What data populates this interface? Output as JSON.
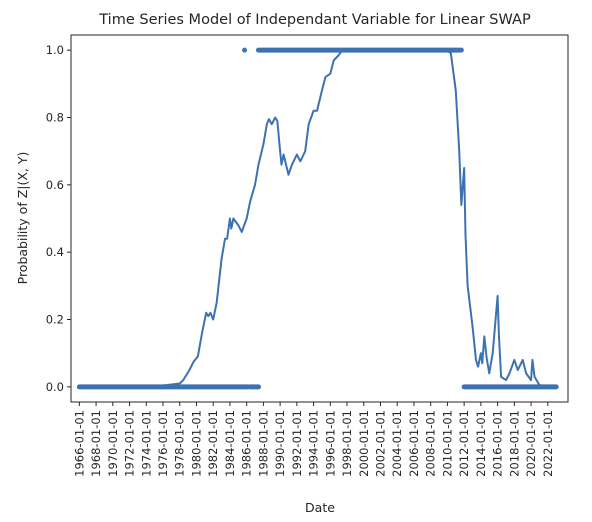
{
  "chart_data": {
    "type": "line",
    "title": "Time Series Model of Independant Variable for Linear SWAP",
    "xlabel": "Date",
    "ylabel": "Probability of Z|(X, Y)",
    "xlim": [
      "1965-01-01",
      "2024-06-01"
    ],
    "ylim": [
      -0.045,
      1.045
    ],
    "yticks": [
      0.0,
      0.2,
      0.4,
      0.6,
      0.8,
      1.0
    ],
    "ytick_labels": [
      "0.0",
      "0.2",
      "0.4",
      "0.6",
      "0.8",
      "1.0"
    ],
    "xticks": [
      "1966-01-01",
      "1968-01-01",
      "1970-01-01",
      "1972-01-01",
      "1974-01-01",
      "1976-01-01",
      "1978-01-01",
      "1980-01-01",
      "1982-01-01",
      "1984-01-01",
      "1986-01-01",
      "1988-01-01",
      "1990-01-01",
      "1992-01-01",
      "1994-01-01",
      "1996-01-01",
      "1998-01-01",
      "2000-01-01",
      "2002-01-01",
      "2004-01-01",
      "2006-01-01",
      "2008-01-01",
      "2010-01-01",
      "2012-01-01",
      "2014-01-01",
      "2016-01-01",
      "2018-01-01",
      "2020-01-01",
      "2022-01-01"
    ],
    "grid": false,
    "color": "#3d72b0",
    "series": [
      {
        "kind": "line",
        "points": [
          [
            "1966-01-01",
            0.0
          ],
          [
            "1974-01-01",
            0.0
          ],
          [
            "1976-06-01",
            0.005
          ],
          [
            "1978-01-01",
            0.01
          ],
          [
            "1978-06-01",
            0.02
          ],
          [
            "1979-03-01",
            0.05
          ],
          [
            "1979-09-01",
            0.075
          ],
          [
            "1980-03-01",
            0.09
          ],
          [
            "1980-09-01",
            0.16
          ],
          [
            "1981-03-01",
            0.22
          ],
          [
            "1981-06-01",
            0.21
          ],
          [
            "1981-09-01",
            0.22
          ],
          [
            "1982-01-01",
            0.2
          ],
          [
            "1982-06-01",
            0.25
          ],
          [
            "1983-01-01",
            0.38
          ],
          [
            "1983-06-01",
            0.44
          ],
          [
            "1983-09-01",
            0.44
          ],
          [
            "1984-01-01",
            0.5
          ],
          [
            "1984-03-01",
            0.47
          ],
          [
            "1984-06-01",
            0.5
          ],
          [
            "1985-01-01",
            0.48
          ],
          [
            "1985-06-01",
            0.46
          ],
          [
            "1986-01-01",
            0.5
          ],
          [
            "1986-06-01",
            0.55
          ],
          [
            "1987-01-01",
            0.6
          ],
          [
            "1987-06-01",
            0.66
          ],
          [
            "1988-01-01",
            0.72
          ],
          [
            "1988-06-01",
            0.78
          ],
          [
            "1988-09-01",
            0.795
          ],
          [
            "1989-01-01",
            0.78
          ],
          [
            "1989-06-01",
            0.8
          ],
          [
            "1989-09-01",
            0.79
          ],
          [
            "1990-01-01",
            0.7
          ],
          [
            "1990-03-01",
            0.66
          ],
          [
            "1990-06-01",
            0.69
          ],
          [
            "1991-01-01",
            0.63
          ],
          [
            "1991-06-01",
            0.66
          ],
          [
            "1992-01-01",
            0.69
          ],
          [
            "1992-06-01",
            0.67
          ],
          [
            "1993-01-01",
            0.7
          ],
          [
            "1993-06-01",
            0.78
          ],
          [
            "1994-01-01",
            0.82
          ],
          [
            "1994-06-01",
            0.82
          ],
          [
            "1995-01-01",
            0.88
          ],
          [
            "1995-06-01",
            0.92
          ],
          [
            "1996-01-01",
            0.93
          ],
          [
            "1996-06-01",
            0.97
          ],
          [
            "1997-01-01",
            0.985
          ],
          [
            "1997-06-01",
            1.0
          ],
          [
            "2010-01-01",
            1.0
          ],
          [
            "2010-06-01",
            0.99
          ],
          [
            "2011-01-01",
            0.88
          ],
          [
            "2011-06-01",
            0.7
          ],
          [
            "2011-09-01",
            0.54
          ],
          [
            "2012-01-01",
            0.65
          ],
          [
            "2012-03-01",
            0.45
          ],
          [
            "2012-06-01",
            0.3
          ],
          [
            "2013-01-01",
            0.18
          ],
          [
            "2013-06-01",
            0.08
          ],
          [
            "2013-09-01",
            0.06
          ],
          [
            "2014-01-01",
            0.1
          ],
          [
            "2014-03-01",
            0.07
          ],
          [
            "2014-06-01",
            0.15
          ],
          [
            "2014-09-01",
            0.09
          ],
          [
            "2015-01-01",
            0.04
          ],
          [
            "2015-06-01",
            0.1
          ],
          [
            "2016-01-01",
            0.27
          ],
          [
            "2016-03-01",
            0.15
          ],
          [
            "2016-06-01",
            0.03
          ],
          [
            "2017-01-01",
            0.02
          ],
          [
            "2017-06-01",
            0.04
          ],
          [
            "2018-01-01",
            0.08
          ],
          [
            "2018-06-01",
            0.05
          ],
          [
            "2019-01-01",
            0.08
          ],
          [
            "2019-06-01",
            0.04
          ],
          [
            "2020-01-01",
            0.02
          ],
          [
            "2020-03-01",
            0.08
          ],
          [
            "2020-06-01",
            0.03
          ],
          [
            "2021-01-01",
            0.005
          ],
          [
            "2022-06-01",
            0.0
          ],
          [
            "2023-01-01",
            0.0
          ]
        ]
      },
      {
        "kind": "band",
        "segments": [
          {
            "from": "1966-01-01",
            "to": "1986-03-01",
            "y": 0.0
          },
          {
            "from": "1986-06-01",
            "to": "1987-06-01",
            "y": 0.0
          },
          {
            "from": "1987-06-01",
            "to": "2011-09-01",
            "y": 1.0
          },
          {
            "from": "2012-01-01",
            "to": "2023-01-01",
            "y": 0.0
          }
        ],
        "dots": [
          {
            "at": "1985-10-01",
            "y": 1.0
          }
        ]
      }
    ]
  }
}
